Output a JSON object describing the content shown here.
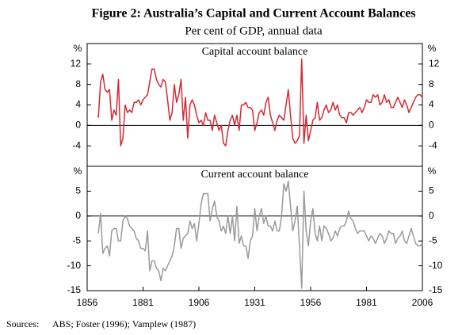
{
  "title": "Figure 2: Australia’s Capital and Current Account Balances",
  "subtitle": "Per cent of GDP, annual data",
  "sources": {
    "label": "Sources:",
    "text": "ABS; Foster (1996); Vamplew (1987)"
  },
  "chart_data": [
    {
      "type": "line",
      "y_unit": "%",
      "x": [
        1861,
        1862,
        1863,
        1864,
        1865,
        1866,
        1867,
        1868,
        1869,
        1870,
        1871,
        1872,
        1873,
        1874,
        1875,
        1876,
        1877,
        1878,
        1879,
        1880,
        1881,
        1882,
        1883,
        1884,
        1885,
        1886,
        1887,
        1888,
        1889,
        1890,
        1891,
        1892,
        1893,
        1894,
        1895,
        1896,
        1897,
        1898,
        1899,
        1900,
        1901,
        1902,
        1903,
        1904,
        1905,
        1906,
        1907,
        1908,
        1909,
        1910,
        1911,
        1912,
        1913,
        1914,
        1915,
        1916,
        1917,
        1918,
        1919,
        1920,
        1921,
        1922,
        1923,
        1924,
        1925,
        1926,
        1927,
        1928,
        1929,
        1930,
        1931,
        1932,
        1933,
        1934,
        1935,
        1936,
        1937,
        1938,
        1939,
        1940,
        1941,
        1942,
        1943,
        1944,
        1945,
        1946,
        1947,
        1948,
        1949,
        1950,
        1951,
        1952,
        1953,
        1954,
        1955,
        1956,
        1957,
        1958,
        1959,
        1960,
        1961,
        1962,
        1963,
        1964,
        1965,
        1966,
        1967,
        1968,
        1969,
        1970,
        1971,
        1972,
        1973,
        1974,
        1975,
        1976,
        1977,
        1978,
        1979,
        1980,
        1981,
        1982,
        1983,
        1984,
        1985,
        1986,
        1987,
        1988,
        1989,
        1990,
        1991,
        1992,
        1993,
        1994,
        1995,
        1996,
        1997,
        1998,
        1999,
        2000,
        2001,
        2002,
        2003,
        2004,
        2005,
        2006
      ],
      "xlim": [
        1856,
        2006
      ],
      "ylim": [
        -8,
        16
      ],
      "yticks": [
        -4,
        0,
        4,
        8,
        12
      ],
      "series": [
        {
          "name": "Capital account balance",
          "color": "#d42a35",
          "values": [
            1.5,
            8.5,
            10,
            7,
            6.5,
            7,
            1,
            3,
            2,
            9,
            -4,
            -2.5,
            4,
            2.5,
            3,
            2.5,
            4.5,
            4.5,
            5,
            4,
            5,
            5.5,
            6,
            8.5,
            11,
            11,
            9,
            8,
            7.5,
            9,
            8.5,
            5,
            1,
            2.5,
            8,
            4.5,
            6,
            9,
            1,
            5.5,
            -2.5,
            4,
            5,
            4,
            2,
            0.5,
            1,
            0,
            2.5,
            1,
            1,
            -1,
            2,
            0.5,
            -1,
            0,
            -3.5,
            -4,
            -1,
            1,
            2,
            0,
            2,
            -1,
            4,
            4,
            4.5,
            3.5,
            3.5,
            3,
            -1,
            0.5,
            2.5,
            3,
            2,
            4.5,
            5.5,
            2,
            0.5,
            -1,
            1,
            2,
            1.5,
            1,
            4,
            7,
            2,
            -2.5,
            -3.5,
            -3,
            -2,
            13,
            -3.5,
            2,
            -3,
            -1,
            1,
            1.5,
            4.5,
            1,
            1.5,
            3,
            4,
            2.5,
            3,
            4.5,
            3,
            4,
            2,
            1.5,
            1.5,
            0.5,
            2.5,
            2.5,
            2,
            2.5,
            3,
            3.5,
            2.5,
            3.5,
            5,
            4.5,
            4.5,
            6,
            5.5,
            6,
            4,
            4.5,
            6,
            4.5,
            5,
            3.5,
            3.5,
            4.5,
            5.5,
            4.5,
            3.5,
            5,
            4,
            2.5,
            3.5,
            4.5,
            5.5,
            6,
            6,
            5.5
          ]
        }
      ]
    },
    {
      "type": "line",
      "y_unit": "%",
      "x": [
        1861,
        1862,
        1863,
        1864,
        1865,
        1866,
        1867,
        1868,
        1869,
        1870,
        1871,
        1872,
        1873,
        1874,
        1875,
        1876,
        1877,
        1878,
        1879,
        1880,
        1881,
        1882,
        1883,
        1884,
        1885,
        1886,
        1887,
        1888,
        1889,
        1890,
        1891,
        1892,
        1893,
        1894,
        1895,
        1896,
        1897,
        1898,
        1899,
        1900,
        1901,
        1902,
        1903,
        1904,
        1905,
        1906,
        1907,
        1908,
        1909,
        1910,
        1911,
        1912,
        1913,
        1914,
        1915,
        1916,
        1917,
        1918,
        1919,
        1920,
        1921,
        1922,
        1923,
        1924,
        1925,
        1926,
        1927,
        1928,
        1929,
        1930,
        1931,
        1932,
        1933,
        1934,
        1935,
        1936,
        1937,
        1938,
        1939,
        1940,
        1941,
        1942,
        1943,
        1944,
        1945,
        1946,
        1947,
        1948,
        1949,
        1950,
        1951,
        1952,
        1953,
        1954,
        1955,
        1956,
        1957,
        1958,
        1959,
        1960,
        1961,
        1962,
        1963,
        1964,
        1965,
        1966,
        1967,
        1968,
        1969,
        1970,
        1971,
        1972,
        1973,
        1974,
        1975,
        1976,
        1977,
        1978,
        1979,
        1980,
        1981,
        1982,
        1983,
        1984,
        1985,
        1986,
        1987,
        1988,
        1989,
        1990,
        1991,
        1992,
        1993,
        1994,
        1995,
        1996,
        1997,
        1998,
        1999,
        2000,
        2001,
        2002,
        2003,
        2004,
        2005,
        2006
      ],
      "xlim": [
        1856,
        2006
      ],
      "xticks": [
        1856,
        1881,
        1906,
        1931,
        1956,
        1981,
        2006
      ],
      "ylim": [
        -15,
        10
      ],
      "yticks": [
        -15,
        -10,
        -5,
        0,
        5
      ],
      "series": [
        {
          "name": "Current account balance",
          "color": "#9a9a9a",
          "values": [
            -3.5,
            0.5,
            -7.5,
            -6.5,
            -6,
            -8,
            -3,
            -2.5,
            -2.5,
            -5,
            -5,
            -1,
            0,
            -0.5,
            -2,
            -2.5,
            -3,
            -4.5,
            -5,
            -6.5,
            -6.5,
            -7,
            -3,
            -11,
            -9,
            -9,
            -10.5,
            -11,
            -13,
            -10.5,
            -11,
            -10,
            -9,
            -8,
            -6,
            -2.5,
            -2.5,
            -6.5,
            -4.5,
            -4,
            -3.5,
            -1,
            -2.5,
            -1.5,
            -5,
            -1.5,
            2.5,
            4.5,
            4.5,
            4.5,
            -1,
            1.5,
            3,
            0,
            -1,
            -3,
            -2,
            -3.5,
            0,
            -3.5,
            0,
            -5,
            2,
            -5.5,
            -4,
            -6,
            -6,
            -8.5,
            -5,
            -4,
            1.5,
            -3,
            0,
            1.5,
            -1.5,
            0,
            -2,
            -2,
            -3,
            -1,
            -3,
            -3,
            0,
            6.5,
            5,
            7,
            2,
            -3,
            -1,
            2,
            -6,
            -14.5,
            5,
            -3,
            -6,
            -1,
            1.5,
            -3.5,
            -5,
            -2,
            -5,
            -2,
            -2.5,
            -3.5,
            -5,
            -4.5,
            -3,
            -4,
            -2.5,
            -2,
            -2,
            -1,
            1,
            -0.5,
            -1,
            -2.5,
            -3.5,
            -3,
            -3,
            -3,
            -4,
            -5,
            -4,
            -4.5,
            -5.5,
            -4.5,
            -3.5,
            -4,
            -5.5,
            -4.5,
            -3,
            -3.5,
            -3.5,
            -5.5,
            -4.5,
            -4,
            -3,
            -5,
            -5.5,
            -4,
            -2.5,
            -4,
            -5.5,
            -6,
            -6,
            -5.5
          ]
        }
      ]
    }
  ]
}
